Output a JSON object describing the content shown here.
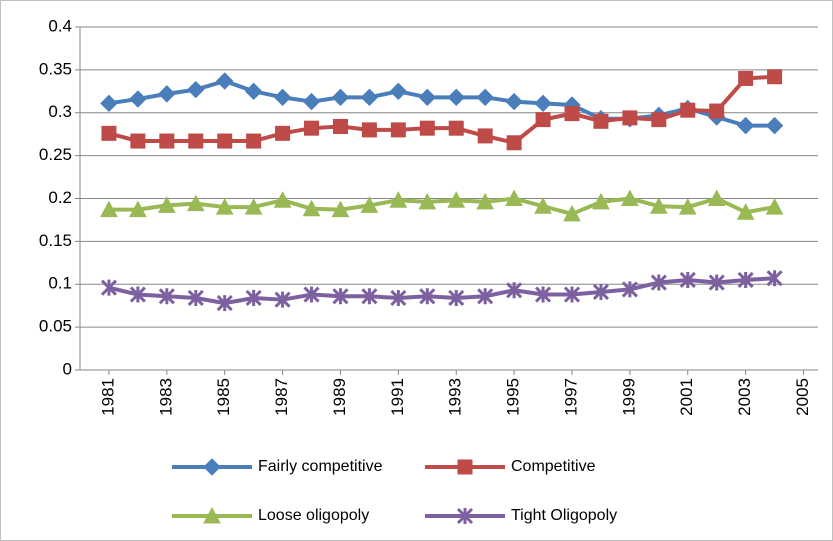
{
  "chart_data": {
    "type": "line",
    "x": [
      1981,
      1982,
      1983,
      1984,
      1985,
      1986,
      1987,
      1988,
      1989,
      1990,
      1991,
      1992,
      1993,
      1994,
      1995,
      1996,
      1997,
      1998,
      1999,
      2000,
      2001,
      2002,
      2003,
      2004
    ],
    "xlim": [
      1980,
      2005.5
    ],
    "xticks": [
      1981,
      1983,
      1985,
      1987,
      1989,
      1991,
      1993,
      1995,
      1997,
      1999,
      2001,
      2003,
      2005
    ],
    "ylim": [
      0,
      0.4
    ],
    "yticks": [
      0,
      0.05,
      0.1,
      0.15,
      0.2,
      0.25,
      0.3,
      0.35,
      0.4
    ],
    "grid": true,
    "legend": "bottom",
    "series": [
      {
        "name": "Fairly competitive",
        "color": "#4a7ebb",
        "marker": "diamond",
        "values": [
          0.311,
          0.316,
          0.322,
          0.327,
          0.337,
          0.325,
          0.318,
          0.313,
          0.318,
          0.318,
          0.325,
          0.318,
          0.318,
          0.318,
          0.313,
          0.311,
          0.309,
          0.293,
          0.293,
          0.297,
          0.305,
          0.295,
          0.285,
          0.285
        ]
      },
      {
        "name": "Competitive",
        "color": "#be4b48",
        "marker": "square",
        "values": [
          0.276,
          0.267,
          0.267,
          0.267,
          0.267,
          0.267,
          0.276,
          0.282,
          0.284,
          0.28,
          0.28,
          0.282,
          0.282,
          0.273,
          0.265,
          0.292,
          0.299,
          0.29,
          0.294,
          0.292,
          0.303,
          0.302,
          0.34,
          0.342
        ]
      },
      {
        "name": "Loose oligopoly",
        "color": "#98b954",
        "marker": "triangle",
        "values": [
          0.187,
          0.187,
          0.192,
          0.194,
          0.19,
          0.19,
          0.198,
          0.188,
          0.187,
          0.192,
          0.198,
          0.196,
          0.198,
          0.196,
          0.2,
          0.191,
          0.182,
          0.196,
          0.2,
          0.191,
          0.19,
          0.2,
          0.184,
          0.19
        ]
      },
      {
        "name": "Tight Oligopoly",
        "color": "#7d60a0",
        "marker": "star",
        "values": [
          0.096,
          0.088,
          0.086,
          0.084,
          0.078,
          0.084,
          0.082,
          0.088,
          0.086,
          0.086,
          0.084,
          0.086,
          0.084,
          0.086,
          0.093,
          0.088,
          0.088,
          0.091,
          0.094,
          0.102,
          0.105,
          0.102,
          0.105,
          0.107
        ]
      }
    ]
  }
}
